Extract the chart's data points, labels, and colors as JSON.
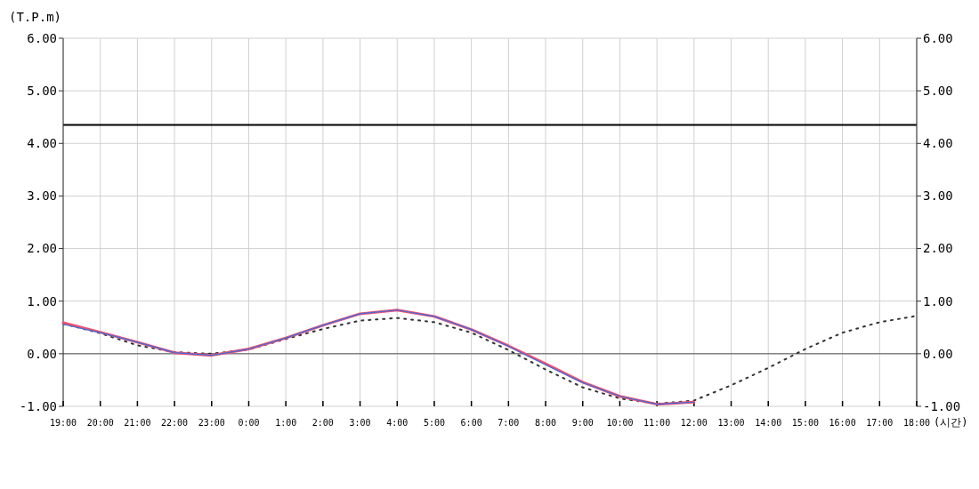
{
  "chart_data": {
    "type": "line",
    "ylabel": "(T.P.m)",
    "xlabel": "(시간)",
    "categories": [
      "19:00",
      "20:00",
      "21:00",
      "22:00",
      "23:00",
      "0:00",
      "1:00",
      "2:00",
      "3:00",
      "4:00",
      "5:00",
      "6:00",
      "7:00",
      "8:00",
      "9:00",
      "10:00",
      "11:00",
      "12:00",
      "13:00",
      "14:00",
      "15:00",
      "16:00",
      "17:00",
      "18:00"
    ],
    "series": [
      {
        "color": "#333333",
        "line_style": "dotted",
        "values": [
          0.57,
          0.39,
          0.16,
          0.03,
          0.0,
          0.08,
          0.28,
          0.47,
          0.63,
          0.68,
          0.6,
          0.4,
          0.07,
          -0.3,
          -0.64,
          -0.85,
          -0.95,
          -0.89,
          -0.6,
          -0.27,
          0.09,
          0.4,
          0.6,
          0.72
        ]
      },
      {
        "color": "#f0506e",
        "line_style": "solid",
        "values": [
          0.59,
          0.41,
          0.22,
          0.02,
          -0.03,
          0.09,
          0.3,
          0.54,
          0.76,
          0.83,
          0.71,
          0.46,
          0.15,
          -0.19,
          -0.54,
          -0.81,
          -0.96,
          -0.92,
          null,
          null,
          null,
          null,
          null,
          null
        ]
      },
      {
        "color": "#3b6fe0",
        "line_style": "solid",
        "values": [
          0.56,
          0.4,
          0.22,
          0.02,
          -0.03,
          0.09,
          0.3,
          0.54,
          0.76,
          0.83,
          0.71,
          0.46,
          0.14,
          -0.21,
          -0.55,
          -0.81,
          -0.96,
          -0.92,
          null,
          null,
          null,
          null,
          null,
          null
        ]
      }
    ],
    "ylim": [
      -1,
      6
    ],
    "yticks": [
      {
        "value": -1,
        "label": "-1.00"
      },
      {
        "value": 0,
        "label": "0.00"
      },
      {
        "value": 1,
        "label": "1.00"
      },
      {
        "value": 2,
        "label": "2.00"
      },
      {
        "value": 3,
        "label": "3.00"
      },
      {
        "value": 4,
        "label": "4.00"
      },
      {
        "value": 5,
        "label": "5.00"
      },
      {
        "value": 6,
        "label": "6.00"
      }
    ],
    "y2lim": [
      -1,
      6
    ],
    "y2ticks": [
      {
        "value": -1,
        "label": "-1.00"
      },
      {
        "value": 0,
        "label": "0.00"
      },
      {
        "value": 1,
        "label": "1.00"
      },
      {
        "value": 2,
        "label": "2.00"
      },
      {
        "value": 3,
        "label": "3.00"
      },
      {
        "value": 4,
        "label": "4.00"
      },
      {
        "value": 5,
        "label": "5.00"
      },
      {
        "value": 6,
        "label": "6.00"
      }
    ],
    "ref_lines": [
      {
        "axis": "y",
        "value": 4.35,
        "color": "#000000"
      },
      {
        "axis": "y",
        "value": 0,
        "color": "#555555"
      }
    ],
    "grid": true,
    "legend": false,
    "marker": "none"
  }
}
